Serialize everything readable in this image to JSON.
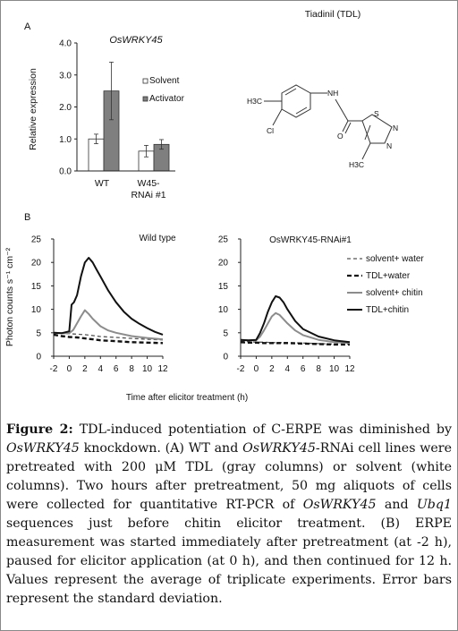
{
  "panel_a": {
    "label": "A",
    "title": "OsWRKY45",
    "ylabel": "Relative expression",
    "y_ticks": [
      "0.0",
      "1.0",
      "2.0",
      "3.0",
      "4.0"
    ],
    "x_labels": [
      "WT",
      "W45-",
      "RNAi #1"
    ],
    "legend": [
      "Solvent",
      "Activator"
    ]
  },
  "structure": {
    "title": "Tiadinil (TDL)",
    "atoms": [
      "H3C",
      "Cl",
      "NH",
      "O",
      "S",
      "N",
      "N",
      "H3C"
    ]
  },
  "panel_b": {
    "label": "B",
    "ylabel": "Photon counts s⁻¹ cm⁻²",
    "xlabel": "Time after elicitor treatment (h)",
    "left_title": "Wild type",
    "right_title": "OsWRKY45-RNAi#1",
    "y_ticks": [
      "0",
      "5",
      "10",
      "15",
      "20",
      "25"
    ],
    "x_ticks": [
      "-2",
      "0",
      "2",
      "4",
      "6",
      "8",
      "10",
      "12"
    ],
    "legend": [
      "solvent+ water",
      "TDL+water",
      "solvent+ chitin",
      "TDL+chitin"
    ]
  },
  "chart_data": [
    {
      "type": "bar",
      "title": "OsWRKY45",
      "ylabel": "Relative expression",
      "categories": [
        "WT",
        "W45-RNAi #1"
      ],
      "ylim": [
        0,
        4.0
      ],
      "series": [
        {
          "name": "Solvent",
          "values": [
            1.0,
            0.62
          ],
          "errors": [
            0.15,
            0.18
          ],
          "color": "#ffffff"
        },
        {
          "name": "Activator",
          "values": [
            2.5,
            0.83
          ],
          "errors": [
            0.9,
            0.15
          ],
          "color": "#7f7f7f"
        }
      ],
      "legend_position": "right"
    },
    {
      "type": "line",
      "title": "Wild type",
      "xlabel": "Time after elicitor treatment (h)",
      "ylabel": "Photon counts s-1 cm-2",
      "xlim": [
        -2,
        12
      ],
      "ylim": [
        0,
        25
      ],
      "series": [
        {
          "name": "solvent+ water",
          "style": "dash-thin",
          "color": "#555555",
          "x": [
            -2,
            -1,
            0,
            1,
            2,
            3,
            4,
            6,
            8,
            10,
            12
          ],
          "y": [
            5.0,
            4.9,
            4.8,
            4.7,
            4.6,
            4.4,
            4.2,
            4.0,
            3.8,
            3.6,
            3.5
          ]
        },
        {
          "name": "TDL+water",
          "style": "dash-bold",
          "color": "#111111",
          "x": [
            -2,
            -1,
            0,
            1,
            2,
            3,
            4,
            6,
            8,
            10,
            12
          ],
          "y": [
            4.6,
            4.3,
            4.1,
            4.0,
            3.8,
            3.6,
            3.4,
            3.2,
            3.0,
            2.9,
            2.8
          ]
        },
        {
          "name": "solvent+ chitin",
          "style": "solid-gray",
          "color": "#8c8c8c",
          "x": [
            -2,
            -1,
            0,
            0.5,
            1,
            1.5,
            2,
            2.5,
            3,
            4,
            5,
            6,
            8,
            10,
            12
          ],
          "y": [
            5.0,
            4.9,
            4.9,
            5.6,
            7.0,
            8.5,
            9.8,
            9.0,
            8.0,
            6.4,
            5.5,
            5.0,
            4.3,
            3.9,
            3.6
          ]
        },
        {
          "name": "TDL+chitin",
          "style": "solid-bold",
          "color": "#111111",
          "x": [
            -2,
            -1,
            0,
            0.3,
            0.6,
            1,
            1.5,
            2,
            2.5,
            3,
            3.5,
            4,
            5,
            6,
            7,
            8,
            9,
            10,
            11,
            12
          ],
          "y": [
            5.0,
            4.9,
            5.3,
            11.0,
            11.5,
            13.0,
            17.0,
            20.0,
            21.0,
            20.0,
            18.5,
            17.0,
            14.0,
            11.5,
            9.5,
            8.0,
            6.9,
            6.0,
            5.2,
            4.6
          ]
        }
      ]
    },
    {
      "type": "line",
      "title": "OsWRKY45-RNAi#1",
      "xlabel": "Time after elicitor treatment (h)",
      "xlim": [
        -2,
        12
      ],
      "ylim": [
        0,
        25
      ],
      "series": [
        {
          "name": "solvent+ water",
          "style": "dash-thin",
          "color": "#555555",
          "x": [
            -2,
            -1,
            0,
            1,
            2,
            4,
            6,
            8,
            10,
            12
          ],
          "y": [
            3.2,
            3.1,
            3.0,
            3.0,
            2.9,
            2.9,
            2.8,
            2.7,
            2.6,
            2.6
          ]
        },
        {
          "name": "TDL+water",
          "style": "dash-bold",
          "color": "#111111",
          "x": [
            -2,
            -1,
            0,
            1,
            2,
            4,
            6,
            8,
            10,
            12
          ],
          "y": [
            3.0,
            2.9,
            2.9,
            2.8,
            2.8,
            2.8,
            2.7,
            2.6,
            2.5,
            2.5
          ]
        },
        {
          "name": "solvent+ chitin",
          "style": "solid-gray",
          "color": "#8c8c8c",
          "x": [
            -2,
            -1,
            0,
            0.5,
            1,
            1.5,
            2,
            2.5,
            3,
            4,
            5,
            6,
            8,
            10,
            12
          ],
          "y": [
            3.5,
            3.4,
            3.4,
            4.2,
            5.5,
            7.0,
            8.5,
            9.2,
            8.8,
            7.0,
            5.5,
            4.5,
            3.5,
            3.0,
            2.8
          ]
        },
        {
          "name": "TDL+chitin",
          "style": "solid-bold",
          "color": "#111111",
          "x": [
            -2,
            -1,
            0,
            0.5,
            1,
            1.5,
            2,
            2.5,
            3,
            3.5,
            4,
            5,
            6,
            8,
            10,
            12
          ],
          "y": [
            3.5,
            3.4,
            3.5,
            5.0,
            7.0,
            9.5,
            11.5,
            12.8,
            12.5,
            11.5,
            10.0,
            7.5,
            5.8,
            4.2,
            3.4,
            3.0
          ]
        }
      ]
    }
  ],
  "caption": {
    "label": "Figure 2:",
    "s1": "TDL-induced potentiation of C-ERPE was diminished by",
    "g1": "OsWRKY45",
    "s2": "knockdown. (A) WT and",
    "g2": "OsWRKY45",
    "s3": "-RNAi cell lines were pretreated with 200 μM TDL (gray columns) or solvent (white columns). Two hours after pretreatment, 50 mg aliquots of cells were collected for quantitative RT-PCR of",
    "g3": "OsWRKY45",
    "s4": "and",
    "g4": "Ubq1",
    "s5": "sequences just before chitin elicitor treatment. (B) ERPE measurement was started immediately after pretreatment (at -2 h), paused for elicitor application (at 0 h), and then continued for 12 h. Values represent the average of triplicate experiments. Error bars represent the standard deviation."
  }
}
